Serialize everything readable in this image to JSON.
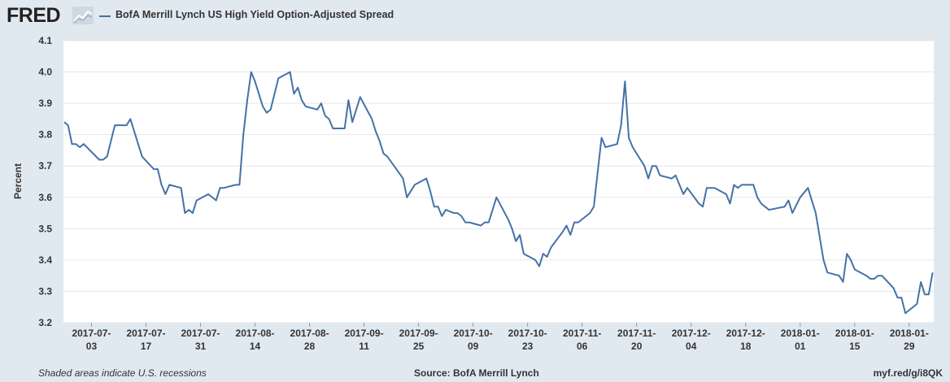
{
  "header": {
    "logo_text": "FRED",
    "logo_icon": "line-chart-icon"
  },
  "chart_data": {
    "type": "line",
    "title": "",
    "legend": "top-left",
    "ylabel": "Percent",
    "xlabel": "",
    "ylim": [
      3.2,
      4.1
    ],
    "yticks": [
      "3.2",
      "3.3",
      "3.4",
      "3.5",
      "3.6",
      "3.7",
      "3.8",
      "3.9",
      "4.0",
      "4.1"
    ],
    "xlim": [
      "2017-06-26",
      "2018-02-02"
    ],
    "xticks": [
      {
        "date": "2017-07-03",
        "line1": "2017-07-",
        "line2": "03"
      },
      {
        "date": "2017-07-17",
        "line1": "2017-07-",
        "line2": "17"
      },
      {
        "date": "2017-07-31",
        "line1": "2017-07-",
        "line2": "31"
      },
      {
        "date": "2017-08-14",
        "line1": "2017-08-",
        "line2": "14"
      },
      {
        "date": "2017-08-28",
        "line1": "2017-08-",
        "line2": "28"
      },
      {
        "date": "2017-09-11",
        "line1": "2017-09-",
        "line2": "11"
      },
      {
        "date": "2017-09-25",
        "line1": "2017-09-",
        "line2": "25"
      },
      {
        "date": "2017-10-09",
        "line1": "2017-10-",
        "line2": "09"
      },
      {
        "date": "2017-10-23",
        "line1": "2017-10-",
        "line2": "23"
      },
      {
        "date": "2017-11-06",
        "line1": "2017-11-",
        "line2": "06"
      },
      {
        "date": "2017-11-20",
        "line1": "2017-11-",
        "line2": "20"
      },
      {
        "date": "2017-12-04",
        "line1": "2017-12-",
        "line2": "04"
      },
      {
        "date": "2017-12-18",
        "line1": "2017-12-",
        "line2": "18"
      },
      {
        "date": "2018-01-01",
        "line1": "2018-01-",
        "line2": "01"
      },
      {
        "date": "2018-01-15",
        "line1": "2018-01-",
        "line2": "15"
      },
      {
        "date": "2018-01-29",
        "line1": "2018-01-",
        "line2": "29"
      }
    ],
    "series": [
      {
        "name": "BofA Merrill Lynch US High Yield Option-Adjusted Spread",
        "color": "#4572a7",
        "points": [
          [
            "2017-06-26",
            3.84
          ],
          [
            "2017-06-27",
            3.83
          ],
          [
            "2017-06-28",
            3.77
          ],
          [
            "2017-06-29",
            3.77
          ],
          [
            "2017-06-30",
            3.76
          ],
          [
            "2017-07-01",
            3.77
          ],
          [
            "2017-07-05",
            3.72
          ],
          [
            "2017-07-06",
            3.72
          ],
          [
            "2017-07-07",
            3.73
          ],
          [
            "2017-07-09",
            3.83
          ],
          [
            "2017-07-12",
            3.83
          ],
          [
            "2017-07-13",
            3.85
          ],
          [
            "2017-07-16",
            3.73
          ],
          [
            "2017-07-19",
            3.69
          ],
          [
            "2017-07-20",
            3.69
          ],
          [
            "2017-07-21",
            3.64
          ],
          [
            "2017-07-22",
            3.61
          ],
          [
            "2017-07-23",
            3.64
          ],
          [
            "2017-07-26",
            3.63
          ],
          [
            "2017-07-27",
            3.55
          ],
          [
            "2017-07-28",
            3.56
          ],
          [
            "2017-07-29",
            3.55
          ],
          [
            "2017-07-30",
            3.59
          ],
          [
            "2017-08-02",
            3.61
          ],
          [
            "2017-08-04",
            3.59
          ],
          [
            "2017-08-05",
            3.63
          ],
          [
            "2017-08-06",
            3.63
          ],
          [
            "2017-08-09",
            3.64
          ],
          [
            "2017-08-10",
            3.64
          ],
          [
            "2017-08-11",
            3.8
          ],
          [
            "2017-08-12",
            3.91
          ],
          [
            "2017-08-13",
            4.0
          ],
          [
            "2017-08-14",
            3.97
          ],
          [
            "2017-08-16",
            3.89
          ],
          [
            "2017-08-17",
            3.87
          ],
          [
            "2017-08-18",
            3.88
          ],
          [
            "2017-08-20",
            3.98
          ],
          [
            "2017-08-23",
            4.0
          ],
          [
            "2017-08-24",
            3.93
          ],
          [
            "2017-08-25",
            3.95
          ],
          [
            "2017-08-26",
            3.91
          ],
          [
            "2017-08-27",
            3.89
          ],
          [
            "2017-08-30",
            3.88
          ],
          [
            "2017-08-31",
            3.9
          ],
          [
            "2017-09-01",
            3.86
          ],
          [
            "2017-09-02",
            3.85
          ],
          [
            "2017-09-03",
            3.82
          ],
          [
            "2017-09-06",
            3.82
          ],
          [
            "2017-09-07",
            3.91
          ],
          [
            "2017-09-08",
            3.84
          ],
          [
            "2017-09-10",
            3.92
          ],
          [
            "2017-09-13",
            3.85
          ],
          [
            "2017-09-14",
            3.81
          ],
          [
            "2017-09-15",
            3.78
          ],
          [
            "2017-09-16",
            3.74
          ],
          [
            "2017-09-17",
            3.73
          ],
          [
            "2017-09-21",
            3.66
          ],
          [
            "2017-09-22",
            3.6
          ],
          [
            "2017-09-24",
            3.64
          ],
          [
            "2017-09-27",
            3.66
          ],
          [
            "2017-09-28",
            3.62
          ],
          [
            "2017-09-29",
            3.57
          ],
          [
            "2017-09-30",
            3.57
          ],
          [
            "2017-10-01",
            3.54
          ],
          [
            "2017-10-02",
            3.56
          ],
          [
            "2017-10-03",
            3.555
          ],
          [
            "2017-10-04",
            3.55
          ],
          [
            "2017-10-05",
            3.55
          ],
          [
            "2017-10-06",
            3.54
          ],
          [
            "2017-10-07",
            3.52
          ],
          [
            "2017-10-08",
            3.52
          ],
          [
            "2017-10-11",
            3.51
          ],
          [
            "2017-10-12",
            3.52
          ],
          [
            "2017-10-13",
            3.52
          ],
          [
            "2017-10-15",
            3.6
          ],
          [
            "2017-10-18",
            3.53
          ],
          [
            "2017-10-19",
            3.5
          ],
          [
            "2017-10-20",
            3.46
          ],
          [
            "2017-10-21",
            3.48
          ],
          [
            "2017-10-22",
            3.42
          ],
          [
            "2017-10-25",
            3.4
          ],
          [
            "2017-10-26",
            3.38
          ],
          [
            "2017-10-27",
            3.42
          ],
          [
            "2017-10-28",
            3.41
          ],
          [
            "2017-10-29",
            3.44
          ],
          [
            "2017-11-01",
            3.49
          ],
          [
            "2017-11-02",
            3.51
          ],
          [
            "2017-11-03",
            3.48
          ],
          [
            "2017-11-04",
            3.52
          ],
          [
            "2017-11-05",
            3.52
          ],
          [
            "2017-11-08",
            3.55
          ],
          [
            "2017-11-09",
            3.57
          ],
          [
            "2017-11-10",
            3.68
          ],
          [
            "2017-11-11",
            3.79
          ],
          [
            "2017-11-12",
            3.76
          ],
          [
            "2017-11-15",
            3.77
          ],
          [
            "2017-11-16",
            3.83
          ],
          [
            "2017-11-17",
            3.97
          ],
          [
            "2017-11-18",
            3.79
          ],
          [
            "2017-11-19",
            3.76
          ],
          [
            "2017-11-22",
            3.7
          ],
          [
            "2017-11-23",
            3.66
          ],
          [
            "2017-11-24",
            3.7
          ],
          [
            "2017-11-25",
            3.7
          ],
          [
            "2017-11-26",
            3.67
          ],
          [
            "2017-11-29",
            3.66
          ],
          [
            "2017-11-30",
            3.67
          ],
          [
            "2017-12-01",
            3.64
          ],
          [
            "2017-12-02",
            3.61
          ],
          [
            "2017-12-03",
            3.63
          ],
          [
            "2017-12-06",
            3.58
          ],
          [
            "2017-12-07",
            3.57
          ],
          [
            "2017-12-08",
            3.63
          ],
          [
            "2017-12-10",
            3.63
          ],
          [
            "2017-12-13",
            3.61
          ],
          [
            "2017-12-14",
            3.58
          ],
          [
            "2017-12-15",
            3.64
          ],
          [
            "2017-12-16",
            3.63
          ],
          [
            "2017-12-17",
            3.64
          ],
          [
            "2017-12-20",
            3.64
          ],
          [
            "2017-12-21",
            3.6
          ],
          [
            "2017-12-22",
            3.58
          ],
          [
            "2017-12-24",
            3.56
          ],
          [
            "2017-12-28",
            3.57
          ],
          [
            "2017-12-29",
            3.59
          ],
          [
            "2017-12-30",
            3.55
          ],
          [
            "2018-01-01",
            3.6
          ],
          [
            "2018-01-03",
            3.63
          ],
          [
            "2018-01-05",
            3.55
          ],
          [
            "2018-01-07",
            3.4
          ],
          [
            "2018-01-08",
            3.36
          ],
          [
            "2018-01-11",
            3.35
          ],
          [
            "2018-01-12",
            3.33
          ],
          [
            "2018-01-13",
            3.42
          ],
          [
            "2018-01-14",
            3.4
          ],
          [
            "2018-01-15",
            3.37
          ],
          [
            "2018-01-18",
            3.35
          ],
          [
            "2018-01-19",
            3.34
          ],
          [
            "2018-01-20",
            3.34
          ],
          [
            "2018-01-21",
            3.35
          ],
          [
            "2018-01-22",
            3.35
          ],
          [
            "2018-01-25",
            3.31
          ],
          [
            "2018-01-26",
            3.28
          ],
          [
            "2018-01-27",
            3.28
          ],
          [
            "2018-01-28",
            3.23
          ],
          [
            "2018-01-31",
            3.26
          ],
          [
            "2018-02-01",
            3.33
          ],
          [
            "2018-02-02",
            3.29
          ],
          [
            "2018-02-03",
            3.29
          ],
          [
            "2018-02-04",
            3.36
          ]
        ]
      }
    ]
  },
  "footer": {
    "note": "Shaded areas indicate U.S. recessions",
    "source": "Source: BofA Merrill Lynch",
    "link": "myf.red/g/i8QK"
  }
}
